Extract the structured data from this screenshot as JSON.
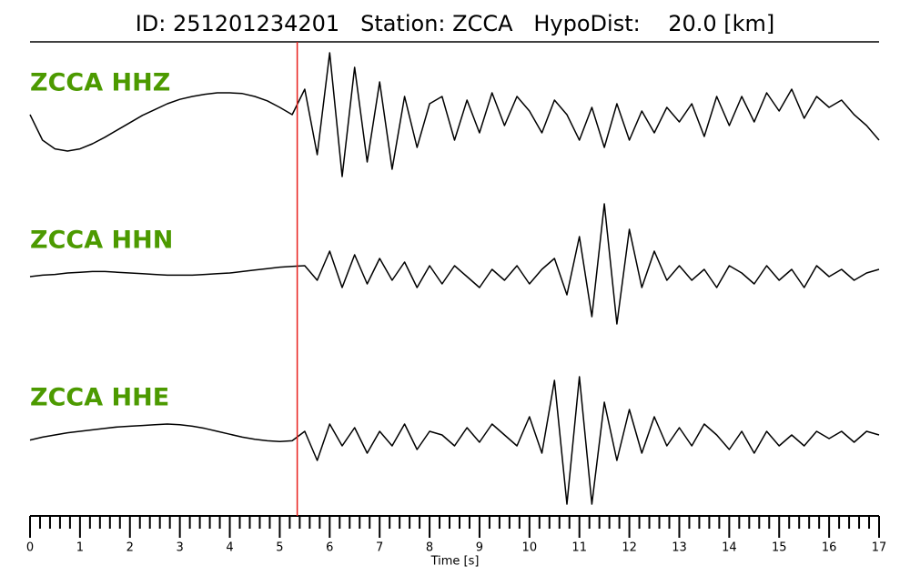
{
  "chart_data": {
    "type": "line",
    "title": "ID: 251201234201   Station: ZCCA   HypoDist:    20.0 [km]",
    "xlabel": "Time [s]",
    "xlim": [
      0,
      17
    ],
    "xticks": [
      0,
      1,
      2,
      3,
      4,
      5,
      6,
      7,
      8,
      9,
      10,
      11,
      12,
      13,
      14,
      15,
      16,
      17
    ],
    "xminorticks": [
      0.2,
      0.4,
      0.6,
      0.8,
      1.2,
      1.4,
      1.6,
      1.8,
      2.2,
      2.4,
      2.6,
      2.8,
      3.2,
      3.4,
      3.6,
      3.8,
      4.2,
      4.4,
      4.6,
      4.8,
      5.2,
      5.4,
      5.6,
      5.8,
      6.2,
      6.4,
      6.6,
      6.8,
      7.2,
      7.4,
      7.6,
      7.8,
      8.2,
      8.4,
      8.6,
      8.8,
      9.2,
      9.4,
      9.6,
      9.8,
      10.2,
      10.4,
      10.6,
      10.8,
      11.2,
      11.4,
      11.6,
      11.8,
      12.2,
      12.4,
      12.6,
      12.8,
      13.2,
      13.4,
      13.6,
      13.8,
      14.2,
      14.4,
      14.6,
      14.8,
      15.2,
      15.4,
      15.6,
      15.8,
      16.2,
      16.4,
      16.6,
      16.8
    ],
    "pick_time": 5.35,
    "pick_color": "#e8201c",
    "label_color": "#4c9a00",
    "x": [
      0,
      0.25,
      0.5,
      0.75,
      1,
      1.25,
      1.5,
      1.75,
      2,
      2.25,
      2.5,
      2.75,
      3,
      3.25,
      3.5,
      3.75,
      4,
      4.25,
      4.5,
      4.75,
      5,
      5.25,
      5.5,
      5.75,
      6,
      6.25,
      6.5,
      6.75,
      7,
      7.25,
      7.5,
      7.75,
      8,
      8.25,
      8.5,
      8.75,
      9,
      9.25,
      9.5,
      9.75,
      10,
      10.25,
      10.5,
      10.75,
      11,
      11.25,
      11.5,
      11.75,
      12,
      12.25,
      12.5,
      12.75,
      13,
      13.25,
      13.5,
      13.75,
      14,
      14.25,
      14.5,
      14.75,
      15,
      15.25,
      15.5,
      15.75,
      16,
      16.25,
      16.5,
      16.75,
      17
    ],
    "series": [
      {
        "name": "ZCCA HHZ",
        "color": "#000000",
        "values": [
          0.05,
          -0.3,
          -0.42,
          -0.45,
          -0.42,
          -0.35,
          -0.26,
          -0.16,
          -0.06,
          0.04,
          0.12,
          0.2,
          0.26,
          0.3,
          0.33,
          0.35,
          0.35,
          0.34,
          0.3,
          0.24,
          0.15,
          0.05,
          0.4,
          -0.5,
          0.9,
          -0.8,
          0.7,
          -0.6,
          0.5,
          -0.7,
          0.3,
          -0.4,
          0.2,
          0.3,
          -0.3,
          0.25,
          -0.2,
          0.35,
          -0.1,
          0.3,
          0.1,
          -0.2,
          0.25,
          0.05,
          -0.3,
          0.15,
          -0.4,
          0.2,
          -0.3,
          0.1,
          -0.2,
          0.15,
          -0.05,
          0.2,
          -0.25,
          0.3,
          -0.1,
          0.3,
          -0.05,
          0.35,
          0.1,
          0.4,
          0,
          0.3,
          0.15,
          0.25,
          0.05,
          -0.1,
          -0.3
        ]
      },
      {
        "name": "ZCCA HHN",
        "color": "#000000",
        "values": [
          -0.05,
          -0.03,
          -0.02,
          0,
          0.01,
          0.02,
          0.02,
          0.01,
          0,
          -0.01,
          -0.02,
          -0.03,
          -0.03,
          -0.03,
          -0.02,
          -0.01,
          0,
          0.02,
          0.04,
          0.06,
          0.08,
          0.09,
          0.1,
          -0.1,
          0.3,
          -0.2,
          0.25,
          -0.15,
          0.2,
          -0.1,
          0.15,
          -0.2,
          0.1,
          -0.15,
          0.1,
          -0.05,
          -0.2,
          0.05,
          -0.1,
          0.1,
          -0.15,
          0.05,
          0.2,
          -0.3,
          0.5,
          -0.6,
          0.95,
          -0.7,
          0.6,
          -0.2,
          0.3,
          -0.1,
          0.1,
          -0.1,
          0.05,
          -0.2,
          0.1,
          0,
          -0.15,
          0.1,
          -0.1,
          0.05,
          -0.2,
          0.1,
          -0.05,
          0.05,
          -0.1,
          0,
          0.05
        ]
      },
      {
        "name": "ZCCA HHE",
        "color": "#000000",
        "values": [
          -0.02,
          0.02,
          0.05,
          0.08,
          0.1,
          0.12,
          0.14,
          0.16,
          0.17,
          0.18,
          0.19,
          0.2,
          0.19,
          0.17,
          0.14,
          0.1,
          0.06,
          0.02,
          -0.01,
          -0.03,
          -0.04,
          -0.03,
          0.1,
          -0.3,
          0.2,
          -0.1,
          0.15,
          -0.2,
          0.1,
          -0.1,
          0.2,
          -0.15,
          0.1,
          0.05,
          -0.1,
          0.15,
          -0.05,
          0.2,
          0.05,
          -0.1,
          0.3,
          -0.2,
          0.8,
          -0.9,
          0.85,
          -0.9,
          0.5,
          -0.3,
          0.4,
          -0.2,
          0.3,
          -0.1,
          0.15,
          -0.1,
          0.2,
          0.05,
          -0.15,
          0.1,
          -0.2,
          0.1,
          -0.1,
          0.05,
          -0.1,
          0.1,
          0,
          0.1,
          -0.05,
          0.1,
          0.05
        ]
      }
    ]
  }
}
